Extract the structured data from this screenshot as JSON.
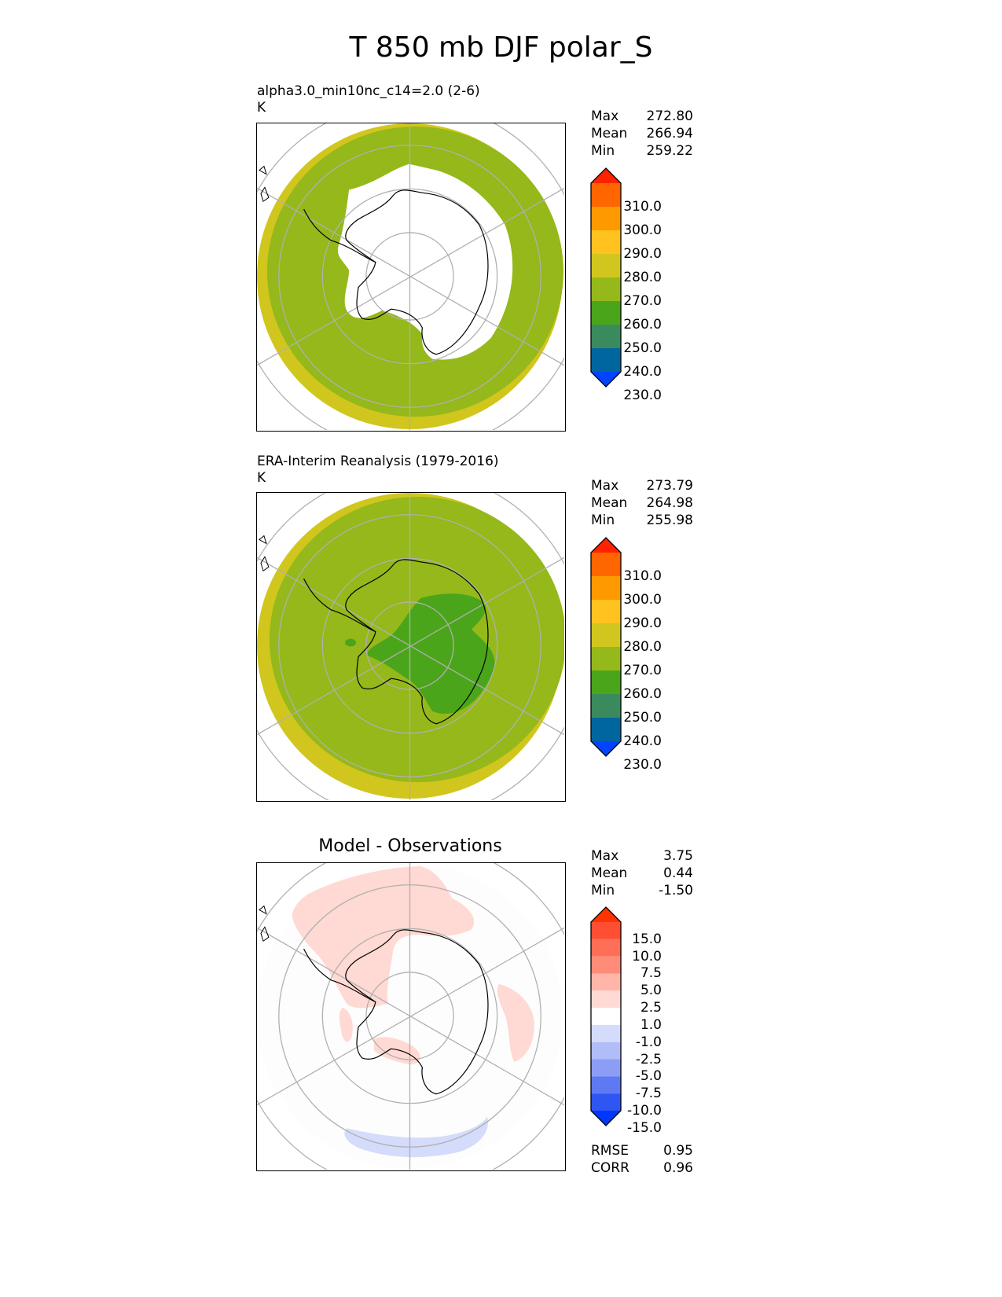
{
  "figure": {
    "title": "T 850 mb DJF polar_S"
  },
  "panels": [
    {
      "title": "alpha3.0_min10nc_c14=2.0 (2-6)",
      "units": "K",
      "stats": [
        {
          "label": "Max",
          "value": "272.80"
        },
        {
          "label": "Mean",
          "value": "266.94"
        },
        {
          "label": "Min",
          "value": "259.22"
        }
      ]
    },
    {
      "title": "ERA-Interim Reanalysis (1979-2016)",
      "units": "K",
      "stats": [
        {
          "label": "Max",
          "value": "273.79"
        },
        {
          "label": "Mean",
          "value": "264.98"
        },
        {
          "label": "Min",
          "value": "255.98"
        }
      ]
    },
    {
      "title": "Model - Observations",
      "units": "",
      "stats": [
        {
          "label": "Max",
          "value": "3.75"
        },
        {
          "label": "Mean",
          "value": "0.44"
        },
        {
          "label": "Min",
          "value": "-1.50"
        }
      ],
      "metrics": [
        {
          "label": "RMSE",
          "value": "0.95"
        },
        {
          "label": "CORR",
          "value": "0.96"
        }
      ]
    }
  ],
  "colorbars": {
    "absolute": {
      "labels": [
        "310.0",
        "300.0",
        "290.0",
        "280.0",
        "270.0",
        "260.0",
        "250.0",
        "240.0",
        "230.0"
      ],
      "colors": [
        "#ff2200",
        "#ff6600",
        "#ff9900",
        "#ffc21e",
        "#d1c61d",
        "#95b81a",
        "#4aa51a",
        "#3a8a5e",
        "#0066a0",
        "#0044ff"
      ]
    },
    "difference": {
      "labels": [
        "15.0",
        "10.0",
        "7.5",
        "5.0",
        "2.5",
        "1.0",
        "-1.0",
        "-2.5",
        "-5.0",
        "-7.5",
        "-10.0",
        "-15.0"
      ],
      "colors": [
        "#ff3300",
        "#ff4f33",
        "#ff6e56",
        "#ff8c79",
        "#ffb6a8",
        "#ffd9d3",
        "#ffffff",
        "#d5dcfb",
        "#b1bdf8",
        "#8c9df5",
        "#5e79f3",
        "#2f55f2",
        "#0037ff"
      ]
    }
  },
  "map": {
    "projection": "south-polar-stereographic",
    "ocean_model_color": "#95b81a",
    "rim_color": "#d1c61d",
    "ice_interior_obs_color": "#4aa51a",
    "diff_warm_color": "#ffd9d3",
    "diff_cool_color": "#d5dcfb",
    "graticule_color": "#b0b0b0",
    "coast_color": "#000000"
  }
}
